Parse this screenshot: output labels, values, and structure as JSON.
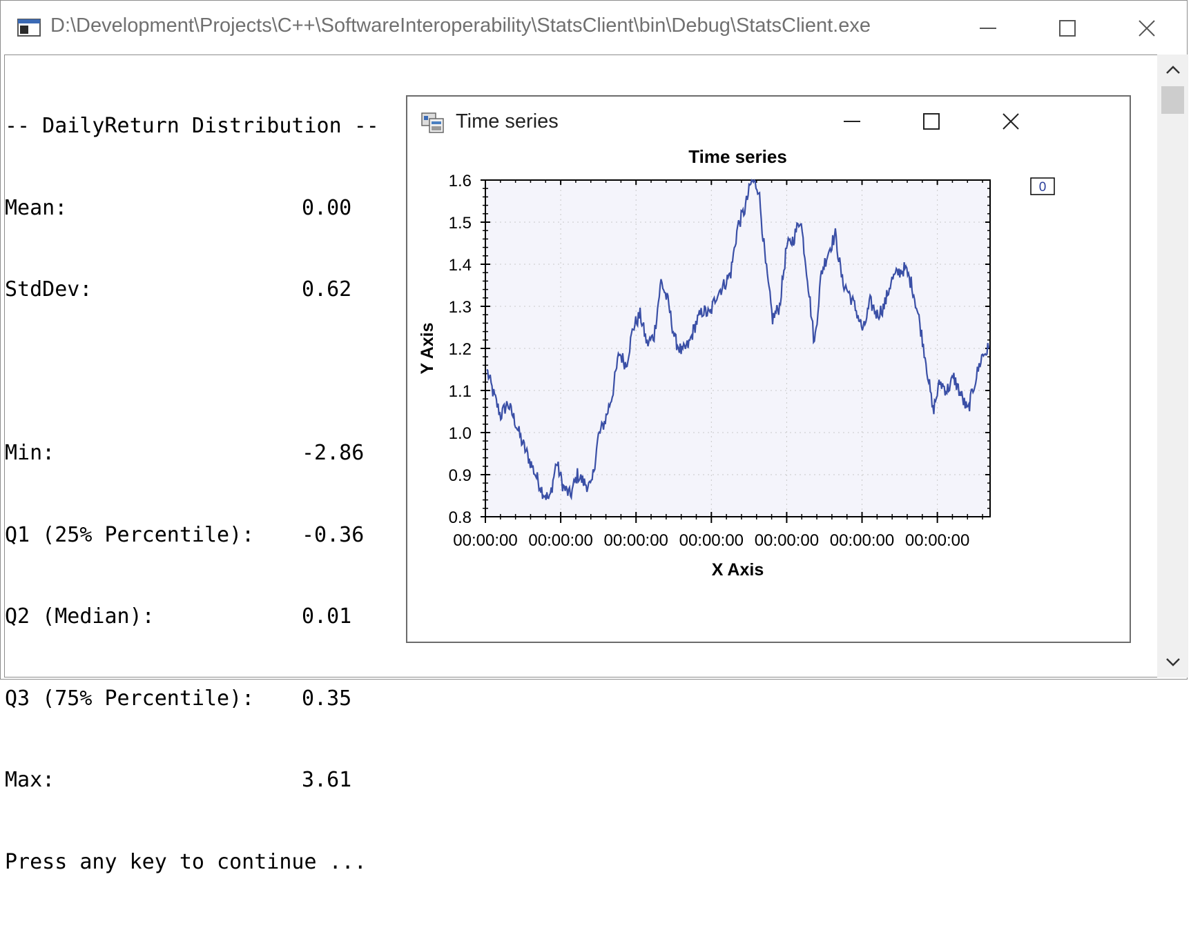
{
  "window": {
    "title": "D:\\Development\\Projects\\C++\\SoftwareInteroperability\\StatsClient\\bin\\Debug\\StatsClient.exe"
  },
  "console": {
    "heading": "-- DailyReturn Distribution --",
    "stats": [
      {
        "label": "Mean:",
        "value": "0.00"
      },
      {
        "label": "StdDev:",
        "value": "0.62"
      },
      {
        "label": "",
        "value": ""
      },
      {
        "label": "Min:",
        "value": "-2.86"
      },
      {
        "label": "Q1 (25% Percentile):",
        "value": "-0.36"
      },
      {
        "label": "Q2 (Median):",
        "value": "0.01"
      },
      {
        "label": "Q3 (75% Percentile):",
        "value": "0.35"
      },
      {
        "label": "Max:",
        "value": "3.61"
      }
    ],
    "prompt": "Press any key to continue ..."
  },
  "chart_window": {
    "title": "Time series"
  },
  "chart_data": {
    "type": "line",
    "title": "Time series",
    "xlabel": "X Axis",
    "ylabel": "Y Axis",
    "ylim": [
      0.8,
      1.6
    ],
    "y_ticks": [
      "0.8",
      "0.9",
      "1.0",
      "1.1",
      "1.2",
      "1.3",
      "1.4",
      "1.5",
      "1.6"
    ],
    "x_ticks": [
      "00:00:00",
      "00:00:00",
      "00:00:00",
      "00:00:00",
      "00:00:00",
      "00:00:00",
      "00:00:00"
    ],
    "grid": true,
    "legend": {
      "entries": [
        "0"
      ],
      "placement": "top-right"
    },
    "series": [
      {
        "name": "0",
        "color": "#3a4fa6",
        "values": [
          1.15,
          1.09,
          1.04,
          1.07,
          1.03,
          0.98,
          0.94,
          0.9,
          0.86,
          0.84,
          0.93,
          0.87,
          0.85,
          0.9,
          0.88,
          0.87,
          0.99,
          1.03,
          1.09,
          1.19,
          1.16,
          1.25,
          1.28,
          1.21,
          1.23,
          1.36,
          1.31,
          1.22,
          1.19,
          1.21,
          1.26,
          1.29,
          1.28,
          1.33,
          1.35,
          1.38,
          1.49,
          1.53,
          1.6,
          1.58,
          1.4,
          1.27,
          1.3,
          1.44,
          1.46,
          1.51,
          1.37,
          1.21,
          1.38,
          1.43,
          1.47,
          1.36,
          1.33,
          1.29,
          1.24,
          1.31,
          1.28,
          1.3,
          1.36,
          1.38,
          1.39,
          1.35,
          1.27,
          1.17,
          1.05,
          1.12,
          1.1,
          1.13,
          1.09,
          1.05,
          1.12,
          1.18,
          1.2
        ]
      }
    ]
  }
}
